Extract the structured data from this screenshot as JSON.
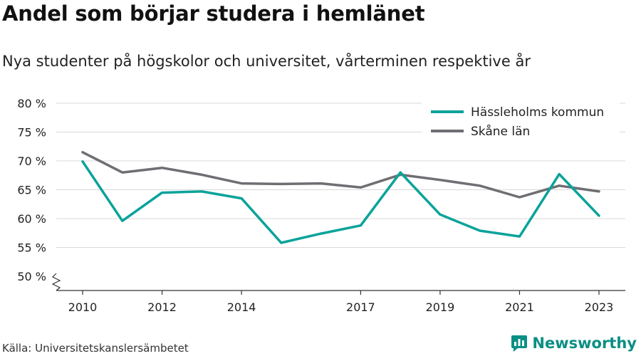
{
  "header": {
    "title": "Andel som börjar studera i hemlänet",
    "subtitle": "Nya studenter på högskolor och universitet, vårterminen respektive år"
  },
  "footer": {
    "source": "Källa: Universitetskanslersämbetet",
    "brand": "Newsworthy",
    "brand_icon": "bar-chart-logo-icon"
  },
  "colors": {
    "hassleholm": "#0aa39a",
    "skane": "#6e6e73",
    "grid": "#d9d9d9",
    "brand": "#0a8f84"
  },
  "chart_data": {
    "type": "line",
    "title": "Andel som börjar studera i hemlänet",
    "subtitle": "Nya studenter på högskolor och universitet, vårterminen respektive år",
    "x": [
      2010,
      2011,
      2012,
      2013,
      2014,
      2015,
      2016,
      2017,
      2018,
      2019,
      2020,
      2021,
      2022,
      2023
    ],
    "x_ticks": [
      2010,
      2012,
      2014,
      2017,
      2019,
      2021,
      2023
    ],
    "y_ticks": [
      50,
      55,
      60,
      65,
      70,
      75,
      80
    ],
    "y_tick_labels": [
      "50 %",
      "55 %",
      "60 %",
      "65 %",
      "70 %",
      "75 %",
      "80 %"
    ],
    "ylim": [
      50,
      80
    ],
    "y_axis_break": true,
    "grid": true,
    "legend_position": "top-right",
    "series": [
      {
        "name": "Hässleholms kommun",
        "color": "#0aa39a",
        "values": [
          69.9,
          59.6,
          64.5,
          64.7,
          63.5,
          55.8,
          57.4,
          58.8,
          68.0,
          60.7,
          57.9,
          56.9,
          67.7,
          60.5
        ]
      },
      {
        "name": "Skåne län",
        "color": "#6e6e73",
        "values": [
          71.5,
          68.0,
          68.8,
          67.6,
          66.1,
          66.0,
          66.1,
          65.4,
          67.6,
          66.7,
          65.7,
          63.7,
          65.7,
          64.7
        ]
      }
    ]
  }
}
